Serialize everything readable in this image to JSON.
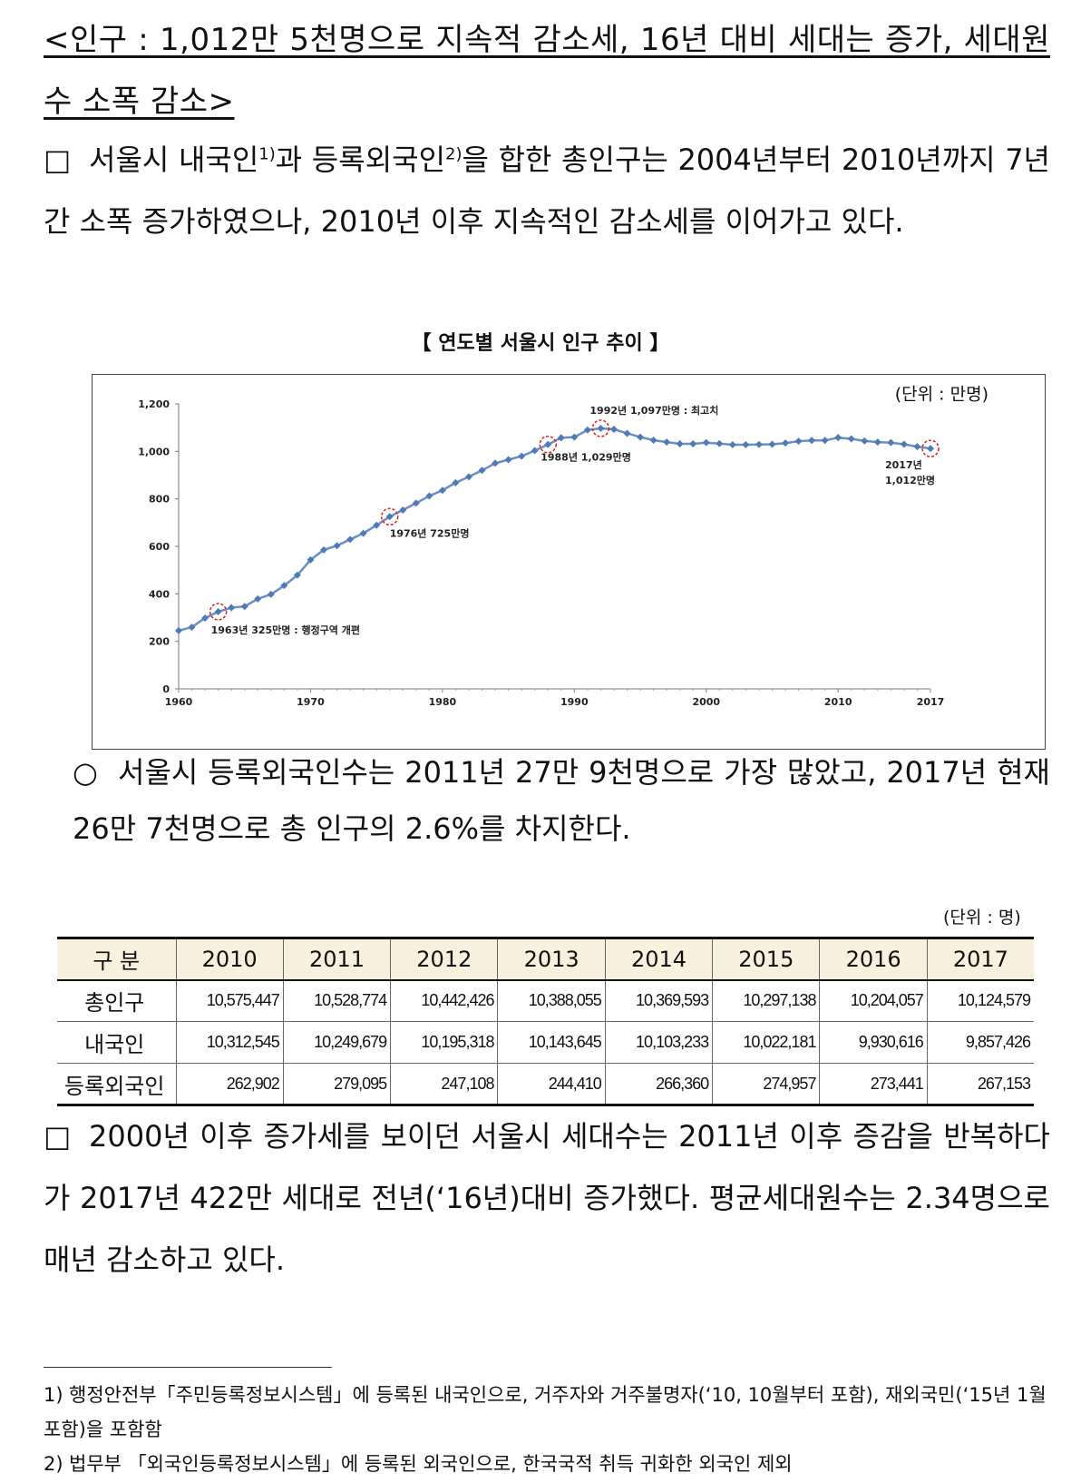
{
  "heading": "<인구 : 1,012만 5천명으로 지속적 감소세, 16년 대비 세대는 증가, 세대원수 소폭 감소>",
  "para1": {
    "marker": "□",
    "text_a": "서울시 내국인",
    "sup1": "1)",
    "text_b": "과 등록외국인",
    "sup2": "2)",
    "text_c": "을 합한 총인구는 2004년부터 2010년까지 7년간 소폭 증가하였으나, 2010년 이후 지속적인 감소세를 이어가고 있다."
  },
  "chart_title": "【 연도별 서울시 인구 추이 】",
  "chart_data": {
    "type": "line",
    "unit_label": "(단위 : 만명)",
    "x_ticks": [
      "1960",
      "1970",
      "1980",
      "1990",
      "2000",
      "2010",
      "2017"
    ],
    "y_ticks": [
      "0",
      "200",
      "400",
      "600",
      "800",
      "1,000",
      "1,200"
    ],
    "ylim": [
      0,
      1200
    ],
    "xlim": [
      1960,
      2017
    ],
    "grid": false,
    "series": [
      {
        "x": [
          1960,
          1961,
          1962,
          1963,
          1964,
          1965,
          1966,
          1967,
          1968,
          1969,
          1970,
          1971,
          1972,
          1973,
          1974,
          1975,
          1976,
          1977,
          1978,
          1979,
          1980,
          1981,
          1982,
          1983,
          1984,
          1985,
          1986,
          1987,
          1988,
          1989,
          1990,
          1991,
          1992,
          1993,
          1994,
          1995,
          1996,
          1997,
          1998,
          1999,
          2000,
          2001,
          2002,
          2003,
          2004,
          2005,
          2006,
          2007,
          2008,
          2009,
          2010,
          2011,
          2012,
          2013,
          2014,
          2015,
          2016,
          2017
        ],
        "values": [
          245,
          260,
          298,
          325,
          342,
          347,
          379,
          398,
          435,
          479,
          543,
          585,
          603,
          629,
          655,
          689,
          725,
          753,
          782,
          812,
          836,
          868,
          893,
          920,
          950,
          965,
          980,
          1003,
          1029,
          1057,
          1060,
          1090,
          1097,
          1093,
          1076,
          1060,
          1047,
          1039,
          1032,
          1032,
          1037,
          1033,
          1028,
          1028,
          1029,
          1030,
          1035,
          1043,
          1046,
          1046,
          1058,
          1053,
          1044,
          1039,
          1037,
          1030,
          1020,
          1012
        ]
      }
    ],
    "annotations": [
      {
        "year": 1963,
        "value": 325,
        "text": "1963년 325만명 : 행정구역 개편"
      },
      {
        "year": 1976,
        "value": 725,
        "text": "1976년 725만명"
      },
      {
        "year": 1988,
        "value": 1029,
        "text": "1988년 1,029만명"
      },
      {
        "year": 1992,
        "value": 1097,
        "text": "1992년 1,097만명 : 최고치"
      },
      {
        "year": 2017,
        "value": 1012,
        "text_line1": "2017년",
        "text_line2": "1,012만명"
      }
    ],
    "line_color": "#6a8fc4",
    "marker_color": "#4f7ab8",
    "highlight_color": "#e02020"
  },
  "para2": {
    "marker": "○",
    "text": "서울시 등록외국인수는 2011년 27만 9천명으로 가장 많았고, 2017년 현재 26만 7천명으로 총 인구의 2.6%를 차지한다."
  },
  "table": {
    "unit": "(단위 : 명)",
    "header_label": "구 분",
    "years": [
      "2010",
      "2011",
      "2012",
      "2013",
      "2014",
      "2015",
      "2016",
      "2017"
    ],
    "rows": [
      {
        "label": "총인구",
        "values": [
          "10,575,447",
          "10,528,774",
          "10,442,426",
          "10,388,055",
          "10,369,593",
          "10,297,138",
          "10,204,057",
          "10,124,579"
        ]
      },
      {
        "label": "내국인",
        "values": [
          "10,312,545",
          "10,249,679",
          "10,195,318",
          "10,143,645",
          "10,103,233",
          "10,022,181",
          "9,930,616",
          "9,857,426"
        ]
      },
      {
        "label": "등록외국인",
        "values": [
          "262,902",
          "279,095",
          "247,108",
          "244,410",
          "266,360",
          "274,957",
          "273,441",
          "267,153"
        ]
      }
    ]
  },
  "para3": {
    "marker": "□",
    "text": "2000년 이후 증가세를 보이던 서울시 세대수는 2011년 이후 증감을 반복하다가 2017년 422만 세대로 전년(‘16년)대비 증가했다. 평균세대원수는 2.34명으로 매년 감소하고 있다."
  },
  "footnotes": [
    {
      "num": "1)",
      "text": "행정안전부「주민등록정보시스템」에 등록된 내국인으로, 거주자와 거주불명자(‘10, 10월부터 포함), 재외국민(‘15년 1월 포함)을 포함함"
    },
    {
      "num": "2)",
      "text": "법무부 「외국인등록정보시스템」에 등록된 외국인으로, 한국국적 취득 귀화한 외국인 제외"
    }
  ]
}
